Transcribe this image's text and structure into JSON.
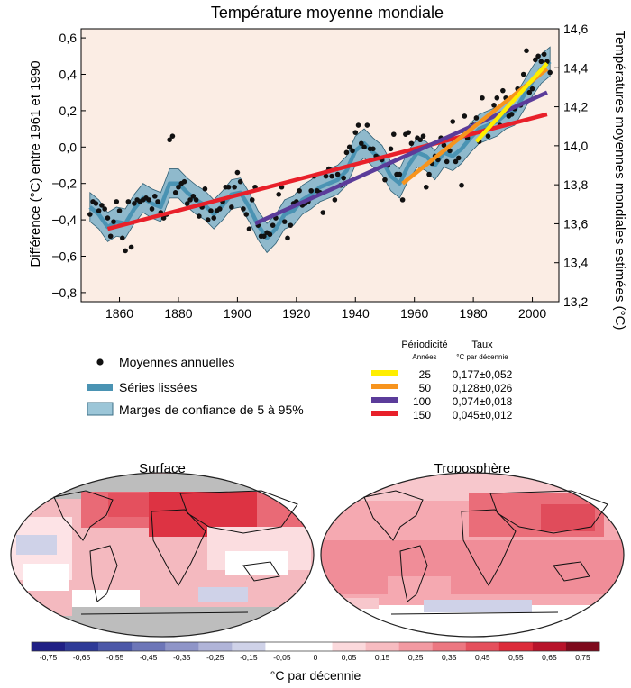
{
  "chart_data": [
    {
      "type": "line",
      "title": "Température moyenne mondiale",
      "ylabel": "Différence (°C) entre 1961 et 1990",
      "ylabel_right": "Températures moyennes mondiales estimées (°C)",
      "xlim": [
        1847,
        2009
      ],
      "ylim": [
        -0.85,
        0.65
      ],
      "ylim_right": [
        13.2,
        14.6
      ],
      "x_ticks": [
        1860,
        1880,
        1900,
        1920,
        1940,
        1960,
        1980,
        2000
      ],
      "y_ticks": [
        -0.8,
        -0.6,
        -0.4,
        -0.2,
        0.0,
        0.2,
        0.4,
        0.6
      ],
      "y_tick_labels": [
        "−0,8",
        "−0,6",
        "−0,4",
        "−0,2",
        "0,0",
        "0,2",
        "0,4",
        "0,6"
      ],
      "y_right_ticks": [
        13.2,
        13.4,
        13.6,
        13.8,
        14.0,
        14.2,
        14.4,
        14.6
      ],
      "y_right_tick_labels": [
        "13,2",
        "13,4",
        "13,6",
        "13,8",
        "14,0",
        "14,2",
        "14,4",
        "14,6"
      ],
      "annual_x": [
        1850,
        1851,
        1852,
        1853,
        1854,
        1855,
        1856,
        1857,
        1858,
        1859,
        1860,
        1861,
        1862,
        1863,
        1864,
        1865,
        1866,
        1867,
        1868,
        1869,
        1870,
        1871,
        1872,
        1873,
        1874,
        1875,
        1876,
        1877,
        1878,
        1879,
        1880,
        1881,
        1882,
        1883,
        1884,
        1885,
        1886,
        1887,
        1888,
        1889,
        1890,
        1891,
        1892,
        1893,
        1894,
        1895,
        1896,
        1897,
        1898,
        1899,
        1900,
        1901,
        1902,
        1903,
        1904,
        1905,
        1906,
        1907,
        1908,
        1909,
        1910,
        1911,
        1912,
        1913,
        1914,
        1915,
        1916,
        1917,
        1918,
        1919,
        1920,
        1921,
        1922,
        1923,
        1924,
        1925,
        1926,
        1927,
        1928,
        1929,
        1930,
        1931,
        1932,
        1933,
        1934,
        1935,
        1936,
        1937,
        1938,
        1939,
        1940,
        1941,
        1942,
        1943,
        1944,
        1945,
        1946,
        1947,
        1948,
        1949,
        1950,
        1951,
        1952,
        1953,
        1954,
        1955,
        1956,
        1957,
        1958,
        1959,
        1960,
        1961,
        1962,
        1963,
        1964,
        1965,
        1966,
        1967,
        1968,
        1969,
        1970,
        1971,
        1972,
        1973,
        1974,
        1975,
        1976,
        1977,
        1978,
        1979,
        1980,
        1981,
        1982,
        1983,
        1984,
        1985,
        1986,
        1987,
        1988,
        1989,
        1990,
        1991,
        1992,
        1993,
        1994,
        1995,
        1996,
        1997,
        1998,
        1999,
        2000,
        2001,
        2002,
        2003,
        2004,
        2005,
        2006
      ],
      "annual_y": [
        -0.37,
        -0.3,
        -0.31,
        -0.35,
        -0.32,
        -0.34,
        -0.39,
        -0.49,
        -0.41,
        -0.3,
        -0.35,
        -0.5,
        -0.57,
        -0.3,
        -0.55,
        -0.31,
        -0.29,
        -0.3,
        -0.29,
        -0.28,
        -0.29,
        -0.34,
        -0.27,
        -0.3,
        -0.36,
        -0.39,
        -0.37,
        0.04,
        0.06,
        -0.25,
        -0.22,
        -0.2,
        -0.19,
        -0.31,
        -0.29,
        -0.27,
        -0.29,
        -0.38,
        -0.33,
        -0.23,
        -0.4,
        -0.35,
        -0.39,
        -0.35,
        -0.34,
        -0.3,
        -0.22,
        -0.22,
        -0.33,
        -0.22,
        -0.14,
        -0.19,
        -0.34,
        -0.37,
        -0.45,
        -0.29,
        -0.22,
        -0.43,
        -0.49,
        -0.49,
        -0.47,
        -0.48,
        -0.43,
        -0.39,
        -0.26,
        -0.22,
        -0.41,
        -0.5,
        -0.43,
        -0.31,
        -0.3,
        -0.24,
        -0.32,
        -0.31,
        -0.3,
        -0.24,
        -0.16,
        -0.24,
        -0.25,
        -0.36,
        -0.16,
        -0.12,
        -0.16,
        -0.29,
        -0.15,
        -0.21,
        -0.17,
        -0.03,
        0.0,
        -0.02,
        0.08,
        0.12,
        0.02,
        0.0,
        0.12,
        -0.01,
        -0.01,
        -0.05,
        -0.06,
        -0.07,
        -0.18,
        -0.1,
        -0.01,
        0.07,
        -0.15,
        -0.15,
        -0.29,
        0.07,
        0.08,
        0.02,
        -0.02,
        0.05,
        0.04,
        0.06,
        -0.22,
        -0.15,
        -0.09,
        -0.05,
        -0.07,
        0.05,
        0.01,
        -0.08,
        -0.02,
        0.14,
        -0.08,
        -0.06,
        -0.21,
        0.17,
        0.05,
        0.1,
        0.12,
        0.16,
        0.03,
        0.27,
        0.09,
        0.06,
        0.12,
        0.23,
        0.27,
        0.12,
        0.31,
        0.27,
        0.17,
        0.18,
        0.21,
        0.32,
        0.23,
        0.4,
        0.53,
        0.3,
        0.32,
        0.48,
        0.5,
        0.47,
        0.51,
        0.47,
        0.41
      ],
      "smooth_x": [
        1850,
        1853,
        1856,
        1859,
        1862,
        1865,
        1868,
        1871,
        1874,
        1877,
        1880,
        1883,
        1886,
        1889,
        1892,
        1895,
        1898,
        1901,
        1904,
        1907,
        1910,
        1913,
        1916,
        1919,
        1922,
        1925,
        1928,
        1931,
        1934,
        1937,
        1940,
        1943,
        1946,
        1949,
        1952,
        1955,
        1958,
        1961,
        1964,
        1967,
        1970,
        1973,
        1976,
        1979,
        1982,
        1985,
        1988,
        1991,
        1994,
        1997,
        2000,
        2003,
        2006
      ],
      "smooth_y": [
        -0.33,
        -0.37,
        -0.44,
        -0.41,
        -0.42,
        -0.34,
        -0.28,
        -0.31,
        -0.33,
        -0.2,
        -0.2,
        -0.25,
        -0.29,
        -0.32,
        -0.37,
        -0.32,
        -0.26,
        -0.25,
        -0.33,
        -0.43,
        -0.5,
        -0.45,
        -0.37,
        -0.35,
        -0.29,
        -0.26,
        -0.22,
        -0.2,
        -0.18,
        -0.13,
        -0.02,
        0.02,
        -0.03,
        -0.07,
        -0.16,
        -0.2,
        -0.1,
        -0.03,
        -0.05,
        -0.1,
        -0.03,
        -0.05,
        -0.01,
        0.05,
        0.1,
        0.12,
        0.14,
        0.18,
        0.2,
        0.28,
        0.36,
        0.43,
        0.47
      ],
      "band_half_width": 0.08,
      "legend": [
        {
          "label": "Moyennes annuelles",
          "kind": "dot"
        },
        {
          "label": "Séries lissées",
          "kind": "line"
        },
        {
          "label": "Marges de confiance de 5 à 95%",
          "kind": "band"
        }
      ],
      "trend_header": {
        "period": "Périodicité",
        "period_unit": "Années",
        "rate": "Taux",
        "rate_unit": "°C par décennie"
      },
      "trends": [
        {
          "period": "25",
          "rate": "0,177±0,052",
          "color": "#ffee00",
          "x0": 1981,
          "x1": 2005,
          "y0": 0.03,
          "y1": 0.46
        },
        {
          "period": "50",
          "rate": "0,128±0,026",
          "color": "#f7941d",
          "x0": 1956,
          "x1": 2005,
          "y0": -0.2,
          "y1": 0.43
        },
        {
          "period": "100",
          "rate": "0,074±0,018",
          "color": "#5b3c9a",
          "x0": 1906,
          "x1": 2005,
          "y0": -0.42,
          "y1": 0.3
        },
        {
          "period": "150",
          "rate": "0,045±0,012",
          "color": "#e8202a",
          "x0": 1856,
          "x1": 2005,
          "y0": -0.45,
          "y1": 0.18
        }
      ]
    },
    {
      "type": "heatmap",
      "maps": [
        {
          "title": "Surface"
        },
        {
          "title": "Troposphère"
        }
      ],
      "colorbar": {
        "tick_labels": [
          "-0,75",
          "-0,65",
          "-0,55",
          "-0,45",
          "-0,35",
          "-0,25",
          "-0,15",
          "-0,05",
          "0",
          "0,05",
          "0,15",
          "0,25",
          "0,35",
          "0,45",
          "0,55",
          "0,65",
          "0,75"
        ],
        "colors": [
          "#1f1f85",
          "#2e3a97",
          "#4c58a8",
          "#6d76b8",
          "#8f95c8",
          "#b0b4d8",
          "#cfd2e8",
          "#ffffff",
          "#ffffff",
          "#fbd9dc",
          "#f7bcc1",
          "#f29aa2",
          "#ec7781",
          "#e5505d",
          "#dc2b3a",
          "#b8132a",
          "#7e0a1c"
        ],
        "label": "°C par décennie"
      }
    }
  ]
}
